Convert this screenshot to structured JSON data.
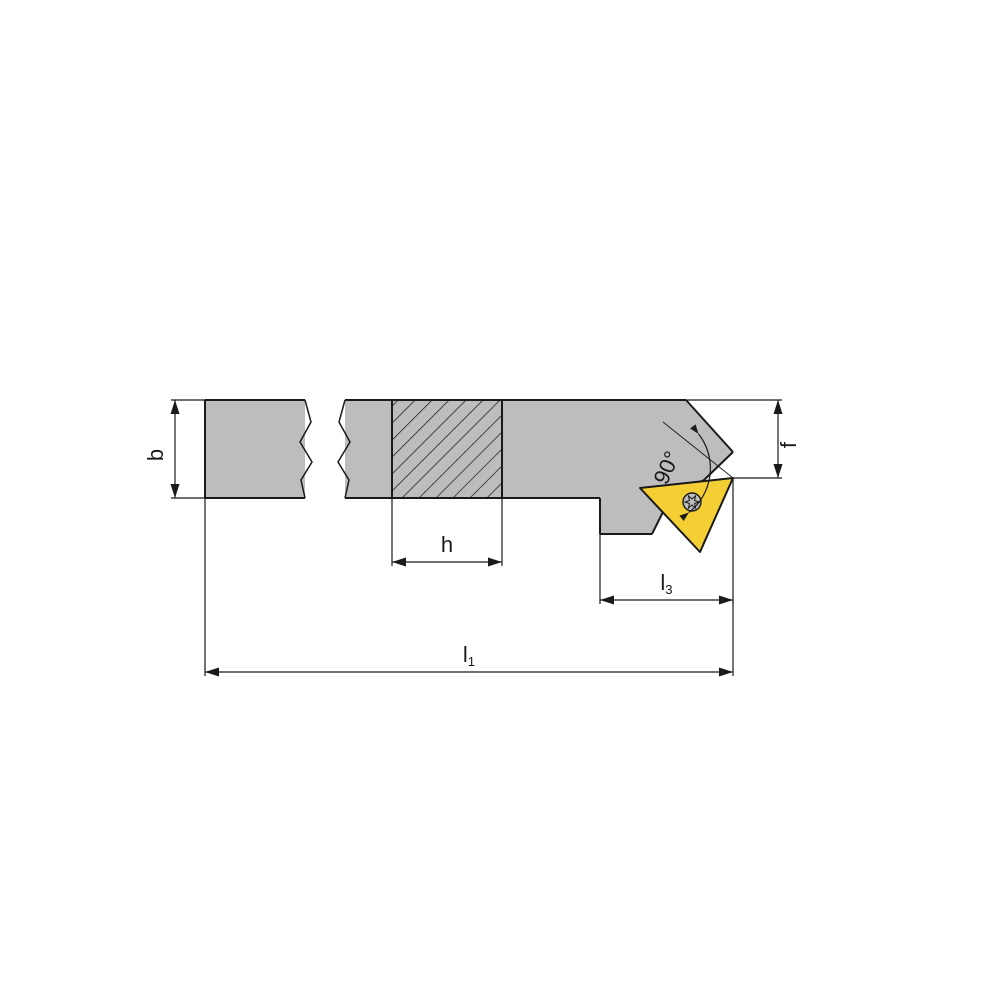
{
  "diagram": {
    "type": "engineering-drawing",
    "background_color": "#ffffff",
    "body_fill": "#bdbdbd",
    "body_stroke": "#1a1a1a",
    "body_stroke_width": 2,
    "break_stroke": "#1a1a1a",
    "break_stroke_width": 1.5,
    "hatch_stroke": "#1a1a1a",
    "hatch_stroke_width": 1.5,
    "insert_fill": "#f3cf33",
    "insert_stroke": "#1a1a1a",
    "insert_stroke_width": 2,
    "dim_stroke": "#1a1a1a",
    "dim_stroke_width": 1.2,
    "dim_font_size": 22,
    "arrow_length": 14,
    "arrow_half": 4.5,
    "labels": {
      "b": "b",
      "h": "h",
      "f": "f",
      "l3_main": "l",
      "l3_sub": "3",
      "l1_main": "l",
      "l1_sub": "1",
      "angle": "90°"
    },
    "screw_fill": "#bdbdbd"
  }
}
